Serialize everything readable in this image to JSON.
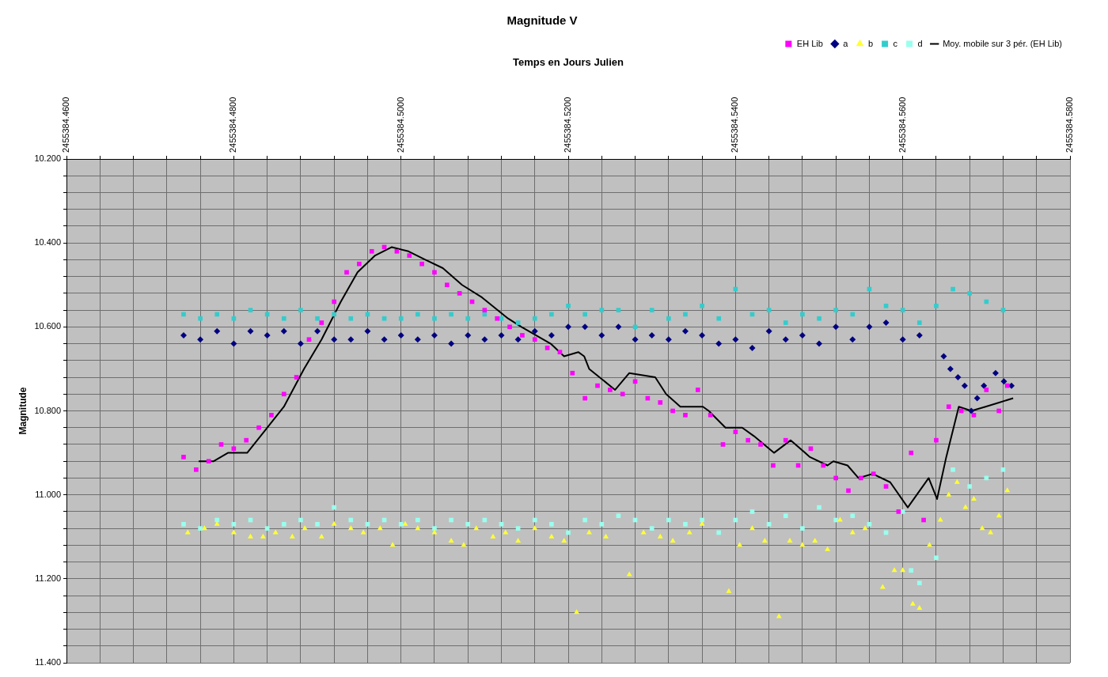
{
  "chart_data": {
    "type": "scatter",
    "title": "Magnitude V",
    "xlabel": "Temps en Jours Julien",
    "ylabel": "Magnitude",
    "xlim": [
      2455384.46,
      2455384.58
    ],
    "xticks": [
      {
        "value": 2455384.46,
        "label": "2455384.4600"
      },
      {
        "value": 2455384.464,
        "label": null
      },
      {
        "value": 2455384.468,
        "label": null
      },
      {
        "value": 2455384.472,
        "label": null
      },
      {
        "value": 2455384.476,
        "label": null
      },
      {
        "value": 2455384.48,
        "label": "2455384.4800"
      },
      {
        "value": 2455384.484,
        "label": null
      },
      {
        "value": 2455384.488,
        "label": null
      },
      {
        "value": 2455384.492,
        "label": null
      },
      {
        "value": 2455384.496,
        "label": null
      },
      {
        "value": 2455384.5,
        "label": "2455384.5000"
      },
      {
        "value": 2455384.504,
        "label": null
      },
      {
        "value": 2455384.508,
        "label": null
      },
      {
        "value": 2455384.512,
        "label": null
      },
      {
        "value": 2455384.516,
        "label": null
      },
      {
        "value": 2455384.52,
        "label": "2455384.5200"
      },
      {
        "value": 2455384.524,
        "label": null
      },
      {
        "value": 2455384.528,
        "label": null
      },
      {
        "value": 2455384.532,
        "label": null
      },
      {
        "value": 2455384.536,
        "label": null
      },
      {
        "value": 2455384.54,
        "label": "2455384.5400"
      },
      {
        "value": 2455384.544,
        "label": null
      },
      {
        "value": 2455384.548,
        "label": null
      },
      {
        "value": 2455384.552,
        "label": null
      },
      {
        "value": 2455384.556,
        "label": null
      },
      {
        "value": 2455384.56,
        "label": "2455384.5600"
      },
      {
        "value": 2455384.564,
        "label": null
      },
      {
        "value": 2455384.568,
        "label": null
      },
      {
        "value": 2455384.572,
        "label": null
      },
      {
        "value": 2455384.576,
        "label": null
      },
      {
        "value": 2455384.58,
        "label": "2455384.5800"
      }
    ],
    "ylim": [
      11.4,
      10.2
    ],
    "yticks": [
      {
        "value": 10.2,
        "label": "10.200"
      },
      {
        "value": 10.24,
        "label": null
      },
      {
        "value": 10.28,
        "label": null
      },
      {
        "value": 10.32,
        "label": null
      },
      {
        "value": 10.36,
        "label": null
      },
      {
        "value": 10.4,
        "label": "10.400"
      },
      {
        "value": 10.44,
        "label": null
      },
      {
        "value": 10.48,
        "label": null
      },
      {
        "value": 10.52,
        "label": null
      },
      {
        "value": 10.56,
        "label": null
      },
      {
        "value": 10.6,
        "label": "10.600"
      },
      {
        "value": 10.64,
        "label": null
      },
      {
        "value": 10.68,
        "label": null
      },
      {
        "value": 10.72,
        "label": null
      },
      {
        "value": 10.76,
        "label": null
      },
      {
        "value": 10.8,
        "label": "10.800"
      },
      {
        "value": 10.84,
        "label": null
      },
      {
        "value": 10.88,
        "label": null
      },
      {
        "value": 10.92,
        "label": null
      },
      {
        "value": 10.96,
        "label": null
      },
      {
        "value": 11.0,
        "label": "11.000"
      },
      {
        "value": 11.04,
        "label": null
      },
      {
        "value": 11.08,
        "label": null
      },
      {
        "value": 11.12,
        "label": null
      },
      {
        "value": 11.16,
        "label": null
      },
      {
        "value": 11.2,
        "label": "11.200"
      },
      {
        "value": 11.24,
        "label": null
      },
      {
        "value": 11.28,
        "label": null
      },
      {
        "value": 11.32,
        "label": null
      },
      {
        "value": 11.36,
        "label": null
      },
      {
        "value": 11.4,
        "label": "11.400"
      }
    ],
    "grid": true,
    "legend": "top right",
    "series": [
      {
        "name": "EH Lib",
        "color": "#ff00ff",
        "marker": "square",
        "x": [
          2455384.474,
          2455384.4755,
          2455384.477,
          2455384.4785,
          2455384.48,
          2455384.4815,
          2455384.483,
          2455384.4845,
          2455384.486,
          2455384.4875,
          2455384.489,
          2455384.4905,
          2455384.492,
          2455384.4935,
          2455384.495,
          2455384.4965,
          2455384.498,
          2455384.4995,
          2455384.501,
          2455384.5025,
          2455384.504,
          2455384.5055,
          2455384.507,
          2455384.5085,
          2455384.51,
          2455384.5115,
          2455384.513,
          2455384.5145,
          2455384.516,
          2455384.5175,
          2455384.519,
          2455384.5205,
          2455384.522,
          2455384.5235,
          2455384.525,
          2455384.5265,
          2455384.528,
          2455384.5295,
          2455384.531,
          2455384.5325,
          2455384.534,
          2455384.5355,
          2455384.537,
          2455384.5385,
          2455384.54,
          2455384.5415,
          2455384.543,
          2455384.5445,
          2455384.546,
          2455384.5475,
          2455384.549,
          2455384.5505,
          2455384.552,
          2455384.5535,
          2455384.555,
          2455384.5565,
          2455384.558,
          2455384.5595,
          2455384.561,
          2455384.5625,
          2455384.564,
          2455384.5655,
          2455384.567,
          2455384.5685,
          2455384.57,
          2455384.5715,
          2455384.5725
        ],
        "values": [
          10.91,
          10.94,
          10.92,
          10.88,
          10.89,
          10.87,
          10.84,
          10.81,
          10.76,
          10.72,
          10.63,
          10.59,
          10.54,
          10.47,
          10.45,
          10.42,
          10.41,
          10.42,
          10.43,
          10.45,
          10.47,
          10.5,
          10.52,
          10.54,
          10.56,
          10.58,
          10.6,
          10.62,
          10.63,
          10.65,
          10.66,
          10.71,
          10.77,
          10.74,
          10.75,
          10.76,
          10.73,
          10.77,
          10.78,
          10.8,
          10.81,
          10.75,
          10.81,
          10.88,
          10.85,
          10.87,
          10.88,
          10.93,
          10.87,
          10.93,
          10.89,
          10.93,
          10.96,
          10.99,
          10.96,
          10.95,
          10.98,
          11.04,
          10.9,
          11.06,
          10.87,
          10.79,
          10.8,
          10.81,
          10.75,
          10.8,
          10.74
        ]
      },
      {
        "name": "a",
        "color": "#000080",
        "marker": "diamond",
        "x": [
          2455384.474,
          2455384.476,
          2455384.478,
          2455384.48,
          2455384.482,
          2455384.484,
          2455384.486,
          2455384.488,
          2455384.49,
          2455384.492,
          2455384.494,
          2455384.496,
          2455384.498,
          2455384.5,
          2455384.502,
          2455384.504,
          2455384.506,
          2455384.508,
          2455384.51,
          2455384.512,
          2455384.514,
          2455384.516,
          2455384.518,
          2455384.52,
          2455384.522,
          2455384.524,
          2455384.526,
          2455384.528,
          2455384.53,
          2455384.532,
          2455384.534,
          2455384.536,
          2455384.538,
          2455384.54,
          2455384.542,
          2455384.544,
          2455384.546,
          2455384.548,
          2455384.55,
          2455384.552,
          2455384.554,
          2455384.556,
          2455384.558,
          2455384.56,
          2455384.562,
          2455384.5649,
          2455384.5657,
          2455384.5666,
          2455384.5674,
          2455384.5682,
          2455384.5689,
          2455384.5697,
          2455384.5711,
          2455384.5721,
          2455384.573
        ],
        "values": [
          10.62,
          10.63,
          10.61,
          10.64,
          10.61,
          10.62,
          10.61,
          10.64,
          10.61,
          10.63,
          10.63,
          10.61,
          10.63,
          10.62,
          10.63,
          10.62,
          10.64,
          10.62,
          10.63,
          10.62,
          10.63,
          10.61,
          10.62,
          10.6,
          10.6,
          10.62,
          10.6,
          10.63,
          10.62,
          10.63,
          10.61,
          10.62,
          10.64,
          10.63,
          10.65,
          10.61,
          10.63,
          10.62,
          10.64,
          10.6,
          10.63,
          10.6,
          10.59,
          10.63,
          10.62,
          10.67,
          10.7,
          10.72,
          10.74,
          10.8,
          10.77,
          10.74,
          10.71,
          10.73,
          10.74
        ]
      },
      {
        "name": "b",
        "color": "#ffff33",
        "marker": "triangle",
        "x": [
          2455384.4745,
          2455384.4765,
          2455384.478,
          2455384.48,
          2455384.482,
          2455384.4835,
          2455384.485,
          2455384.487,
          2455384.4885,
          2455384.4905,
          2455384.492,
          2455384.494,
          2455384.4955,
          2455384.4975,
          2455384.499,
          2455384.5005,
          2455384.502,
          2455384.504,
          2455384.506,
          2455384.5075,
          2455384.509,
          2455384.511,
          2455384.5125,
          2455384.514,
          2455384.516,
          2455384.518,
          2455384.5195,
          2455384.521,
          2455384.5225,
          2455384.5245,
          2455384.5273,
          2455384.529,
          2455384.531,
          2455384.5325,
          2455384.5345,
          2455384.536,
          2455384.5392,
          2455384.5405,
          2455384.542,
          2455384.5435,
          2455384.5452,
          2455384.5465,
          2455384.548,
          2455384.5495,
          2455384.551,
          2455384.5525,
          2455384.554,
          2455384.5555,
          2455384.5576,
          2455384.559,
          2455384.56,
          2455384.5612,
          2455384.562,
          2455384.5632,
          2455384.5645,
          2455384.5655,
          2455384.5665,
          2455384.5675,
          2455384.5685,
          2455384.5695,
          2455384.5705,
          2455384.5715,
          2455384.5725
        ],
        "values": [
          11.09,
          11.08,
          11.07,
          11.09,
          11.1,
          11.1,
          11.09,
          11.1,
          11.08,
          11.1,
          11.07,
          11.08,
          11.09,
          11.08,
          11.12,
          11.07,
          11.08,
          11.09,
          11.11,
          11.12,
          11.08,
          11.1,
          11.09,
          11.11,
          11.08,
          11.1,
          11.11,
          11.28,
          11.09,
          11.1,
          11.19,
          11.09,
          11.1,
          11.11,
          11.09,
          11.07,
          11.23,
          11.12,
          11.08,
          11.11,
          11.29,
          11.11,
          11.12,
          11.11,
          11.13,
          11.06,
          11.09,
          11.08,
          11.22,
          11.18,
          11.18,
          11.26,
          11.27,
          11.12,
          11.06,
          11.0,
          10.97,
          11.03,
          11.01,
          11.08,
          11.09,
          11.05,
          10.99
        ]
      },
      {
        "name": "c",
        "color": "#33cccc",
        "marker": "square",
        "x": [
          2455384.474,
          2455384.476,
          2455384.478,
          2455384.48,
          2455384.482,
          2455384.484,
          2455384.486,
          2455384.488,
          2455384.49,
          2455384.492,
          2455384.494,
          2455384.496,
          2455384.498,
          2455384.5,
          2455384.502,
          2455384.504,
          2455384.506,
          2455384.508,
          2455384.51,
          2455384.512,
          2455384.514,
          2455384.516,
          2455384.518,
          2455384.52,
          2455384.522,
          2455384.524,
          2455384.526,
          2455384.528,
          2455384.53,
          2455384.532,
          2455384.534,
          2455384.536,
          2455384.538,
          2455384.54,
          2455384.542,
          2455384.544,
          2455384.546,
          2455384.548,
          2455384.55,
          2455384.552,
          2455384.554,
          2455384.556,
          2455384.558,
          2455384.56,
          2455384.562,
          2455384.564,
          2455384.566,
          2455384.568,
          2455384.57,
          2455384.572
        ],
        "values": [
          10.57,
          10.58,
          10.57,
          10.58,
          10.56,
          10.57,
          10.58,
          10.56,
          10.58,
          10.57,
          10.58,
          10.57,
          10.58,
          10.58,
          10.57,
          10.58,
          10.57,
          10.58,
          10.57,
          10.58,
          10.59,
          10.58,
          10.57,
          10.55,
          10.57,
          10.56,
          10.56,
          10.6,
          10.56,
          10.58,
          10.57,
          10.55,
          10.58,
          10.51,
          10.57,
          10.56,
          10.59,
          10.57,
          10.58,
          10.56,
          10.57,
          10.51,
          10.55,
          10.56,
          10.59,
          10.55,
          10.51,
          10.52,
          10.54,
          10.56
        ]
      },
      {
        "name": "d",
        "color": "#99ffee",
        "marker": "square",
        "x": [
          2455384.474,
          2455384.476,
          2455384.478,
          2455384.48,
          2455384.482,
          2455384.484,
          2455384.486,
          2455384.488,
          2455384.49,
          2455384.492,
          2455384.494,
          2455384.496,
          2455384.498,
          2455384.5,
          2455384.502,
          2455384.504,
          2455384.506,
          2455384.508,
          2455384.51,
          2455384.512,
          2455384.514,
          2455384.516,
          2455384.518,
          2455384.52,
          2455384.522,
          2455384.524,
          2455384.526,
          2455384.528,
          2455384.53,
          2455384.532,
          2455384.534,
          2455384.536,
          2455384.538,
          2455384.54,
          2455384.542,
          2455384.544,
          2455384.546,
          2455384.548,
          2455384.55,
          2455384.552,
          2455384.554,
          2455384.556,
          2455384.558,
          2455384.56,
          2455384.561,
          2455384.562,
          2455384.564,
          2455384.566,
          2455384.568,
          2455384.57,
          2455384.572
        ],
        "values": [
          11.07,
          11.08,
          11.06,
          11.07,
          11.06,
          11.08,
          11.07,
          11.06,
          11.07,
          11.03,
          11.06,
          11.07,
          11.06,
          11.07,
          11.06,
          11.08,
          11.06,
          11.07,
          11.06,
          11.07,
          11.08,
          11.06,
          11.07,
          11.09,
          11.06,
          11.07,
          11.05,
          11.06,
          11.08,
          11.06,
          11.07,
          11.06,
          11.09,
          11.06,
          11.04,
          11.07,
          11.05,
          11.08,
          11.03,
          11.06,
          11.05,
          11.07,
          11.09,
          11.04,
          11.18,
          11.21,
          11.15,
          10.94,
          10.98,
          10.96,
          10.94
        ]
      },
      {
        "name": "Moy. mobile sur 3 pér. (EH Lib)",
        "type": "line",
        "color": "#000000",
        "marker": "none",
        "x": [
          2455384.4758,
          2455384.4776,
          2455384.4793,
          2455384.4816,
          2455384.4836,
          2455384.486,
          2455384.4884,
          2455384.4905,
          2455384.4928,
          2455384.4948,
          2455384.4969,
          2455384.4989,
          2455384.5009,
          2455384.5029,
          2455384.505,
          2455384.5073,
          2455384.5097,
          2455384.5128,
          2455384.5144,
          2455384.5179,
          2455384.5195,
          2455384.5212,
          2455384.5219,
          2455384.5225,
          2455384.5256,
          2455384.5273,
          2455384.5304,
          2455384.5317,
          2455384.5334,
          2455384.5361,
          2455384.5368,
          2455384.5388,
          2455384.5408,
          2455384.5422,
          2455384.5446,
          2455384.5466,
          2455384.5489,
          2455384.551,
          2455384.5517,
          2455384.5534,
          2455384.5547,
          2455384.5564,
          2455384.5585,
          2455384.5606,
          2455384.5631,
          2455384.5641,
          2455384.5652,
          2455384.5667,
          2455384.5682,
          2455384.5699,
          2455384.5732
        ],
        "values": [
          10.92,
          10.92,
          10.9,
          10.9,
          10.85,
          10.79,
          10.7,
          10.63,
          10.54,
          10.47,
          10.43,
          10.41,
          10.42,
          10.44,
          10.46,
          10.5,
          10.53,
          10.58,
          10.6,
          10.64,
          10.67,
          10.66,
          10.67,
          10.7,
          10.75,
          10.71,
          10.72,
          10.76,
          10.79,
          10.79,
          10.8,
          10.84,
          10.84,
          10.86,
          10.9,
          10.87,
          10.91,
          10.93,
          10.92,
          10.93,
          10.96,
          10.95,
          10.97,
          11.03,
          10.96,
          11.01,
          10.91,
          10.79,
          10.8,
          10.79,
          10.77
        ]
      }
    ]
  }
}
